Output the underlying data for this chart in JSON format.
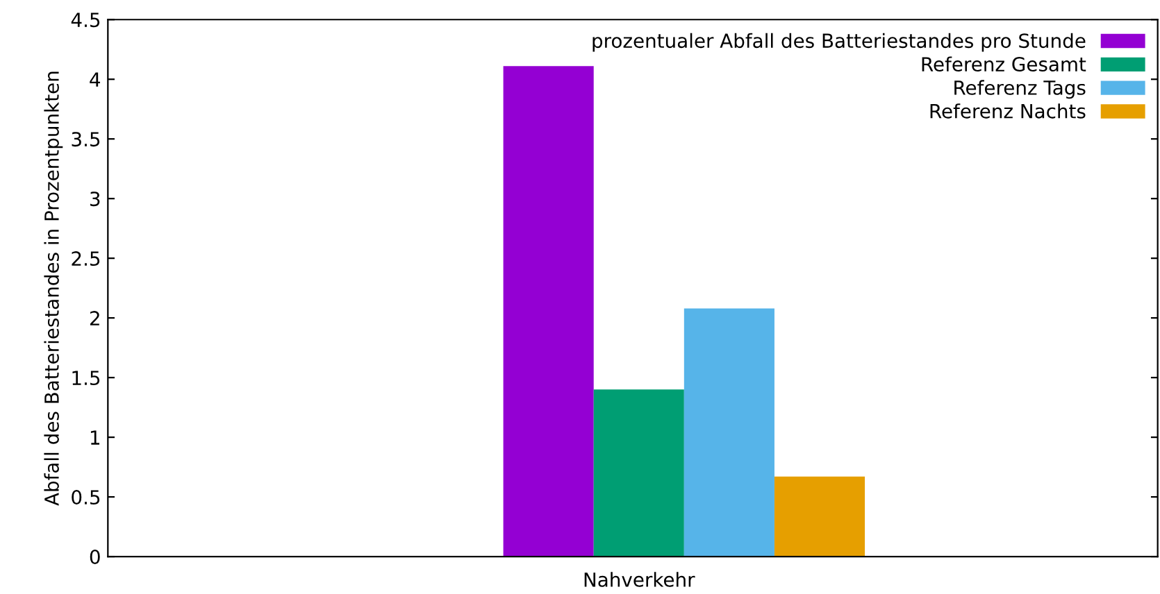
{
  "chart_data": {
    "type": "bar",
    "ylabel": "Abfall des Batteriestandes in Prozentpunkten",
    "categories": [
      "Nahverkehr"
    ],
    "series": [
      {
        "name": "prozentualer Abfall des Batteriestandes pro Stunde",
        "color": "#9400d3",
        "values": [
          4.11
        ]
      },
      {
        "name": "Referenz Gesamt",
        "color": "#009e73",
        "values": [
          1.4
        ]
      },
      {
        "name": "Referenz Tags",
        "color": "#56b4e9",
        "values": [
          2.08
        ]
      },
      {
        "name": "Referenz Nachts",
        "color": "#e69f00",
        "values": [
          0.67
        ]
      }
    ],
    "ylim": [
      0,
      4.5
    ],
    "yticks": [
      0,
      0.5,
      1,
      1.5,
      2,
      2.5,
      3,
      3.5,
      4,
      4.5
    ],
    "grid": false,
    "legend": "top right"
  }
}
